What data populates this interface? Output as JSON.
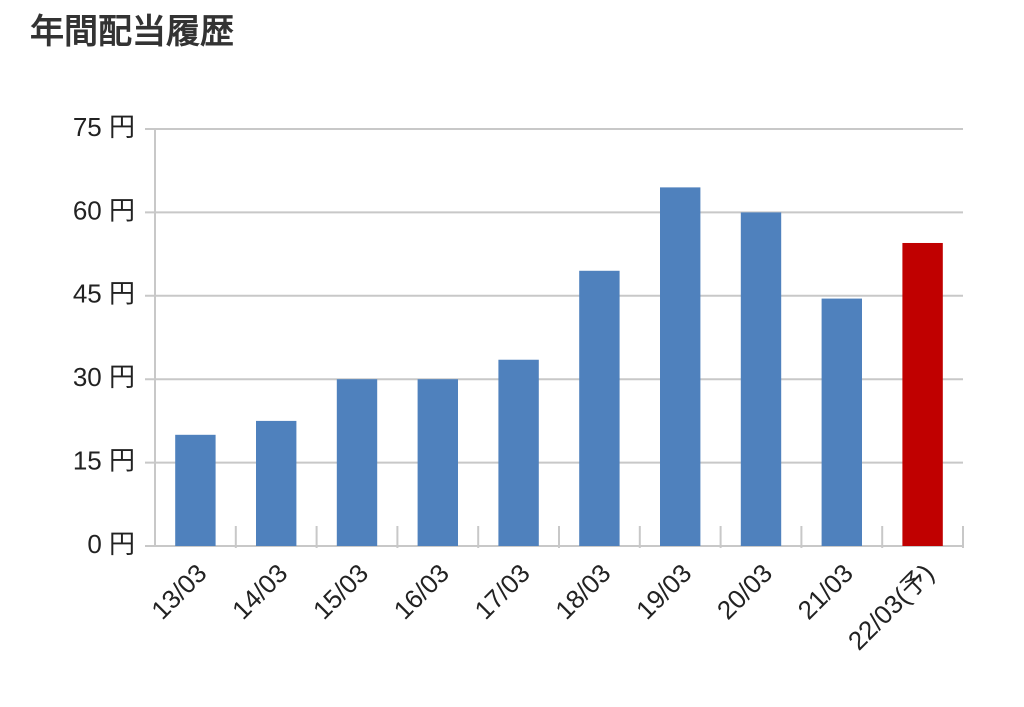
{
  "chart_data": {
    "type": "bar",
    "title": "年間配当履歴",
    "categories": [
      "13/03",
      "14/03",
      "15/03",
      "16/03",
      "17/03",
      "18/03",
      "19/03",
      "20/03",
      "21/03",
      "22/03(予)"
    ],
    "values": [
      20,
      22.5,
      30,
      30,
      33.5,
      49.5,
      64.5,
      60,
      44.5,
      54.5
    ],
    "colors": [
      "#4f81bd",
      "#4f81bd",
      "#4f81bd",
      "#4f81bd",
      "#4f81bd",
      "#4f81bd",
      "#4f81bd",
      "#4f81bd",
      "#4f81bd",
      "#c00000"
    ],
    "ylim": [
      0,
      75
    ],
    "yticks": [
      {
        "value": 0,
        "label": "0 円"
      },
      {
        "value": 15,
        "label": "15 円"
      },
      {
        "value": 30,
        "label": "30 円"
      },
      {
        "value": 45,
        "label": "45 円"
      },
      {
        "value": 60,
        "label": "60 円"
      },
      {
        "value": 75,
        "label": "75 円"
      }
    ],
    "grid": true
  }
}
